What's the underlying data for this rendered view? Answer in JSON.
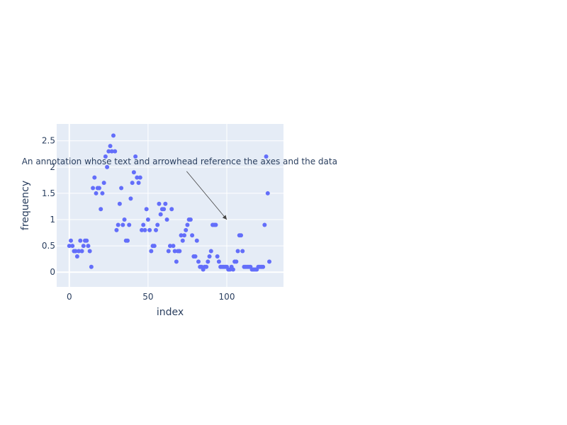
{
  "chart_data": {
    "type": "scatter",
    "title": "",
    "xlabel": "index",
    "ylabel": "frequency",
    "xlim": [
      -8,
      136
    ],
    "ylim": [
      -0.28,
      2.82
    ],
    "xticks": [
      0,
      50,
      100
    ],
    "yticks": [
      0,
      0.5,
      1,
      1.5,
      2,
      2.5
    ],
    "ytick_labels": [
      "0",
      "0.5",
      "1",
      "1.5",
      "2",
      "2.5"
    ],
    "grid": true,
    "marker_color": "#636efa",
    "plot_bg": "#e5ecf6",
    "annotation": {
      "text": "An annotation whose text and arrowhead reference the axes and the data",
      "x": 100,
      "y": 1,
      "text_x": 70,
      "text_y": 2.0
    },
    "series": [
      {
        "x": [
          0,
          1,
          2,
          3,
          4,
          5,
          6,
          7,
          8,
          9,
          10,
          11,
          12,
          13,
          14,
          15,
          16,
          17,
          18,
          19,
          20,
          21,
          22,
          23,
          24,
          25,
          26,
          27,
          28,
          29,
          30,
          31,
          32,
          33,
          34,
          35,
          36,
          37,
          38,
          39,
          40,
          41,
          42,
          43,
          44,
          45,
          46,
          47,
          48,
          49,
          50,
          51,
          52,
          53,
          54,
          55,
          56,
          57,
          58,
          59,
          60,
          61,
          62,
          63,
          64,
          65,
          66,
          67,
          68,
          69,
          70,
          71,
          72,
          73,
          74,
          75,
          76,
          77,
          78,
          79,
          80,
          81,
          82,
          83,
          84,
          85,
          86,
          87,
          88,
          89,
          90,
          91,
          92,
          93,
          94,
          95,
          96,
          97,
          98,
          99,
          100,
          101,
          102,
          103,
          104,
          105,
          106,
          107,
          108,
          109,
          110,
          111,
          112,
          113,
          114,
          115,
          116,
          117,
          118,
          119,
          120,
          121,
          122,
          123,
          124,
          125,
          126,
          127
        ],
        "y": [
          0.5,
          0.6,
          0.5,
          0.4,
          0.4,
          0.3,
          0.4,
          0.6,
          0.4,
          0.5,
          0.6,
          0.6,
          0.5,
          0.4,
          0.1,
          1.6,
          1.8,
          1.5,
          1.6,
          1.6,
          1.2,
          1.5,
          1.7,
          2.2,
          2.0,
          2.3,
          2.4,
          2.3,
          2.6,
          2.3,
          0.8,
          0.9,
          1.3,
          1.6,
          0.9,
          1.0,
          0.6,
          0.6,
          0.9,
          1.4,
          1.7,
          1.9,
          2.2,
          1.8,
          1.7,
          1.8,
          0.8,
          0.9,
          0.8,
          1.2,
          1.0,
          0.8,
          0.4,
          0.5,
          0.5,
          0.8,
          0.9,
          1.3,
          1.1,
          1.2,
          1.2,
          1.3,
          1.0,
          0.4,
          0.5,
          1.2,
          0.5,
          0.4,
          0.2,
          0.4,
          0.4,
          0.7,
          0.6,
          0.7,
          0.8,
          0.9,
          1.0,
          1.0,
          0.7,
          0.3,
          0.3,
          0.6,
          0.2,
          0.1,
          0.1,
          0.05,
          0.1,
          0.1,
          0.2,
          0.3,
          0.4,
          0.9,
          0.9,
          0.9,
          0.3,
          0.2,
          0.1,
          0.1,
          0.1,
          0.1,
          0.1,
          0.05,
          0.05,
          0.1,
          0.05,
          0.2,
          0.2,
          0.4,
          0.7,
          0.7,
          0.4,
          0.1,
          0.1,
          0.1,
          0.1,
          0.1,
          0.05,
          0.05,
          0.05,
          0.05,
          0.1,
          0.1,
          0.1,
          0.1,
          0.9,
          2.2,
          1.5,
          0.2
        ]
      }
    ]
  }
}
